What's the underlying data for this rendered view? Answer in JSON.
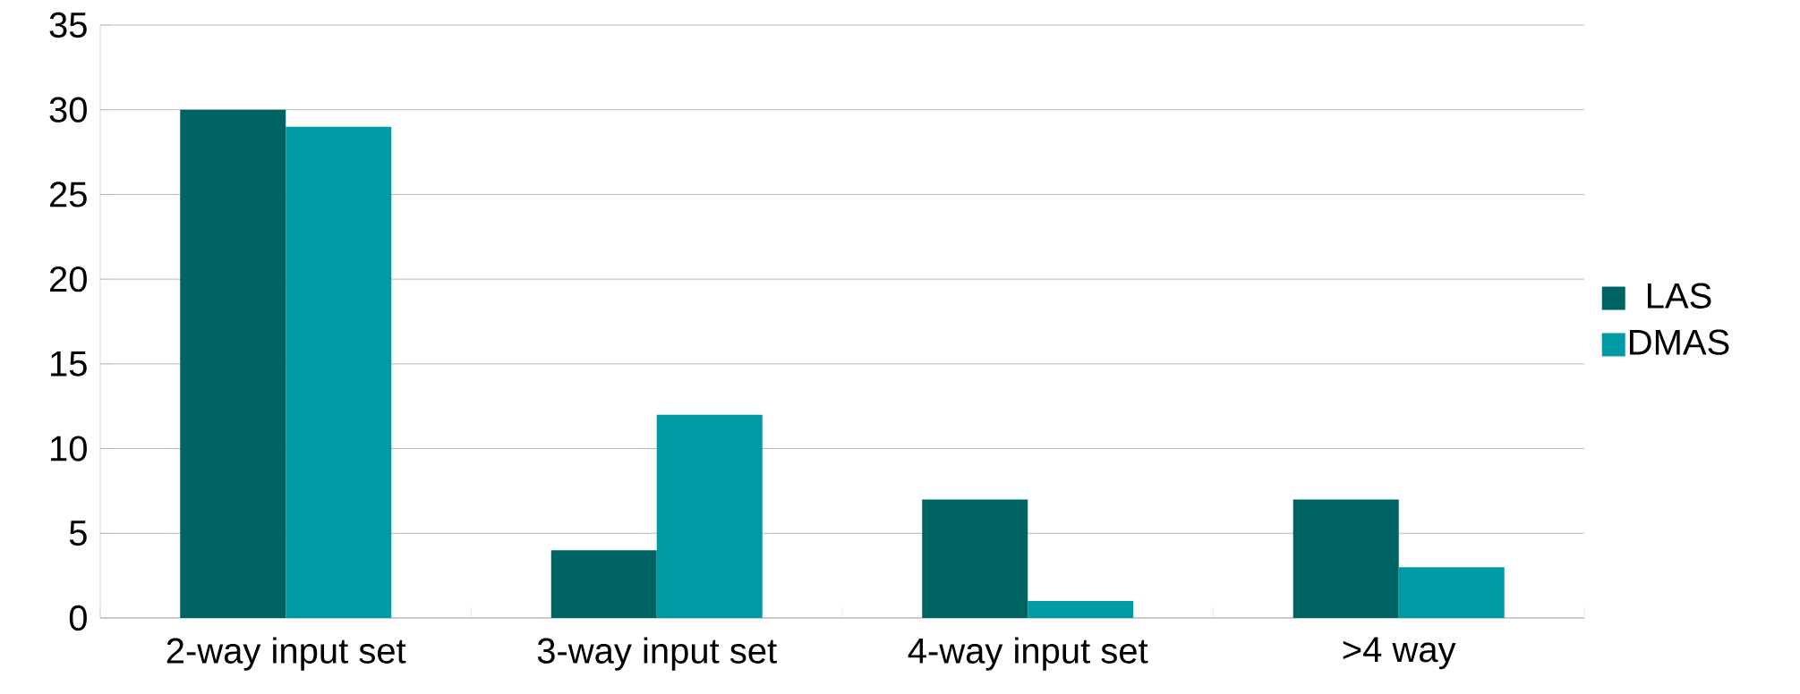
{
  "chart_data": {
    "type": "bar",
    "categories": [
      "2-way input set",
      "3-way input set",
      "4-way input set",
      ">4 way"
    ],
    "series": [
      {
        "name": "LAS",
        "color": "#006363",
        "values": [
          30,
          4,
          7,
          7
        ]
      },
      {
        "name": "DMAS",
        "color": "#009aa4",
        "values": [
          29,
          12,
          1,
          3
        ]
      }
    ],
    "ylim": [
      0,
      35
    ],
    "yticks": [
      0,
      5,
      10,
      15,
      20,
      25,
      30,
      35
    ],
    "grid": "y",
    "legend": "right"
  }
}
